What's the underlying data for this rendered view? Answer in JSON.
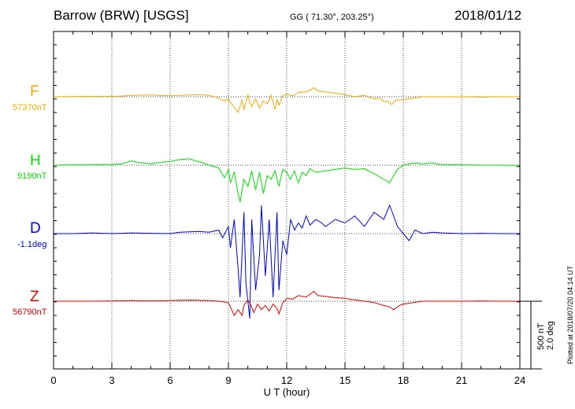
{
  "header": {
    "station": "Barrow (BRW)  [USGS]",
    "coords": "GG ( 71.30°, 203.25°)",
    "date": "2018/01/12"
  },
  "footer": {
    "plotted": "Plotted at 2018/07/20 04:14 UT"
  },
  "chart_data": {
    "type": "line",
    "title": "Barrow (BRW)  [USGS]",
    "xlabel": "U T (hour)",
    "xlim": [
      0,
      24
    ],
    "xticks": [
      0,
      3,
      6,
      9,
      12,
      15,
      18,
      21,
      24
    ],
    "scale_label_1": "500 nT",
    "scale_label_2": "2.0 deg",
    "grid": true,
    "series": [
      {
        "name": "F",
        "baseline_label": "57370nT",
        "color": "#f2a900",
        "offset_nT": 0,
        "x": [
          0,
          1,
          2,
          3,
          3.5,
          4,
          4.5,
          5,
          5.5,
          6,
          6.5,
          7,
          7.5,
          8,
          8.5,
          8.8,
          9,
          9.1,
          9.3,
          9.5,
          9.7,
          9.8,
          10,
          10.1,
          10.2,
          10.4,
          10.6,
          10.8,
          11,
          11.2,
          11.4,
          11.5,
          11.6,
          11.8,
          12,
          12.3,
          12.6,
          13,
          13.2,
          13.4,
          13.6,
          14,
          14.5,
          15,
          15.5,
          16,
          16.5,
          16.8,
          17,
          17.2,
          17.4,
          17.6,
          18,
          18.5,
          19,
          20,
          21,
          22,
          23,
          24
        ],
        "y": [
          0,
          3,
          4,
          5,
          10,
          20,
          22,
          25,
          18,
          15,
          20,
          25,
          30,
          20,
          -20,
          -60,
          -30,
          -80,
          -150,
          -220,
          -50,
          -180,
          30,
          -80,
          -140,
          -30,
          -160,
          -60,
          -100,
          20,
          -180,
          -40,
          -120,
          20,
          40,
          10,
          60,
          70,
          90,
          130,
          80,
          70,
          50,
          30,
          0,
          20,
          -30,
          -20,
          -70,
          -60,
          -110,
          -50,
          -40,
          -20,
          0,
          0,
          0,
          -5,
          0,
          0
        ]
      },
      {
        "name": "H",
        "baseline_label": "9190nT",
        "color": "#00e000",
        "offset_nT": 0,
        "x": [
          0,
          1,
          2,
          3,
          3.5,
          4,
          4.3,
          4.6,
          5,
          5.5,
          6,
          6.5,
          7,
          7.3,
          7.6,
          8,
          8.5,
          8.8,
          9,
          9.1,
          9.3,
          9.5,
          9.6,
          9.8,
          10,
          10.2,
          10.4,
          10.6,
          10.8,
          11,
          11.2,
          11.4,
          11.6,
          11.8,
          12,
          12.2,
          12.4,
          12.6,
          12.8,
          13,
          13.2,
          13.5,
          14,
          14.5,
          15,
          15.5,
          16,
          16.5,
          17,
          17.3,
          17.5,
          17.7,
          18,
          18.5,
          19,
          19.5,
          20,
          21,
          22,
          23,
          24
        ],
        "y": [
          0,
          5,
          5,
          10,
          20,
          60,
          40,
          30,
          20,
          40,
          50,
          80,
          90,
          60,
          40,
          0,
          -40,
          -180,
          -60,
          -250,
          -100,
          -400,
          -520,
          -200,
          -300,
          -80,
          -350,
          -100,
          -400,
          -150,
          -200,
          -80,
          -300,
          -60,
          -100,
          -200,
          -80,
          -250,
          -100,
          -150,
          -50,
          -100,
          -80,
          -60,
          -40,
          -60,
          -50,
          -120,
          -200,
          -250,
          -150,
          -60,
          0,
          30,
          20,
          30,
          10,
          5,
          0,
          0,
          -5
        ]
      },
      {
        "name": "D",
        "baseline_label": "-1.1deg",
        "color": "#0000dd",
        "offset_nT": 0,
        "x": [
          0,
          1,
          2,
          3,
          4,
          5,
          6,
          6.5,
          7,
          7.5,
          8,
          8.5,
          8.7,
          9,
          9.1,
          9.3,
          9.5,
          9.6,
          9.8,
          9.9,
          10.1,
          10.2,
          10.4,
          10.6,
          10.7,
          10.9,
          11.1,
          11.3,
          11.5,
          11.6,
          11.8,
          12,
          12.2,
          12.4,
          12.6,
          12.8,
          13,
          13.2,
          13.5,
          13.8,
          14,
          14.5,
          15,
          15.5,
          16,
          16.5,
          17,
          17.3,
          17.5,
          17.7,
          18,
          18.3,
          18.6,
          19,
          19.5,
          20,
          21,
          22,
          23,
          24
        ],
        "y": [
          0,
          0,
          10,
          0,
          10,
          5,
          0,
          20,
          25,
          30,
          20,
          50,
          -60,
          100,
          -200,
          200,
          -500,
          -900,
          300,
          -700,
          -1200,
          200,
          -800,
          -300,
          400,
          -600,
          200,
          -900,
          300,
          -800,
          -100,
          -300,
          200,
          50,
          150,
          80,
          250,
          120,
          200,
          150,
          100,
          200,
          150,
          250,
          100,
          300,
          200,
          400,
          250,
          100,
          0,
          -100,
          50,
          0,
          20,
          10,
          0,
          5,
          0,
          0
        ]
      },
      {
        "name": "Z",
        "baseline_label": "56790nT",
        "color": "#e00000",
        "offset_nT": 0,
        "x": [
          0,
          1,
          2,
          3,
          4,
          5,
          6,
          7,
          8,
          8.5,
          9,
          9.1,
          9.3,
          9.5,
          9.7,
          9.8,
          10,
          10.2,
          10.3,
          10.5,
          10.7,
          10.9,
          11.1,
          11.3,
          11.5,
          11.6,
          11.8,
          12,
          12.3,
          12.6,
          13,
          13.2,
          13.4,
          13.6,
          14,
          14.5,
          15,
          15.5,
          16,
          16.5,
          17,
          17.3,
          17.5,
          17.8,
          18,
          18.5,
          19,
          20,
          21,
          22,
          23,
          24
        ],
        "y": [
          0,
          0,
          0,
          5,
          10,
          5,
          10,
          15,
          10,
          0,
          -20,
          -80,
          -200,
          -120,
          -200,
          -60,
          20,
          -80,
          -160,
          -40,
          -120,
          -60,
          -140,
          -40,
          -100,
          -180,
          -20,
          40,
          30,
          80,
          60,
          100,
          140,
          80,
          70,
          50,
          40,
          20,
          0,
          -20,
          -60,
          -80,
          -120,
          -60,
          -40,
          -20,
          0,
          0,
          0,
          5,
          0,
          0
        ]
      }
    ]
  }
}
